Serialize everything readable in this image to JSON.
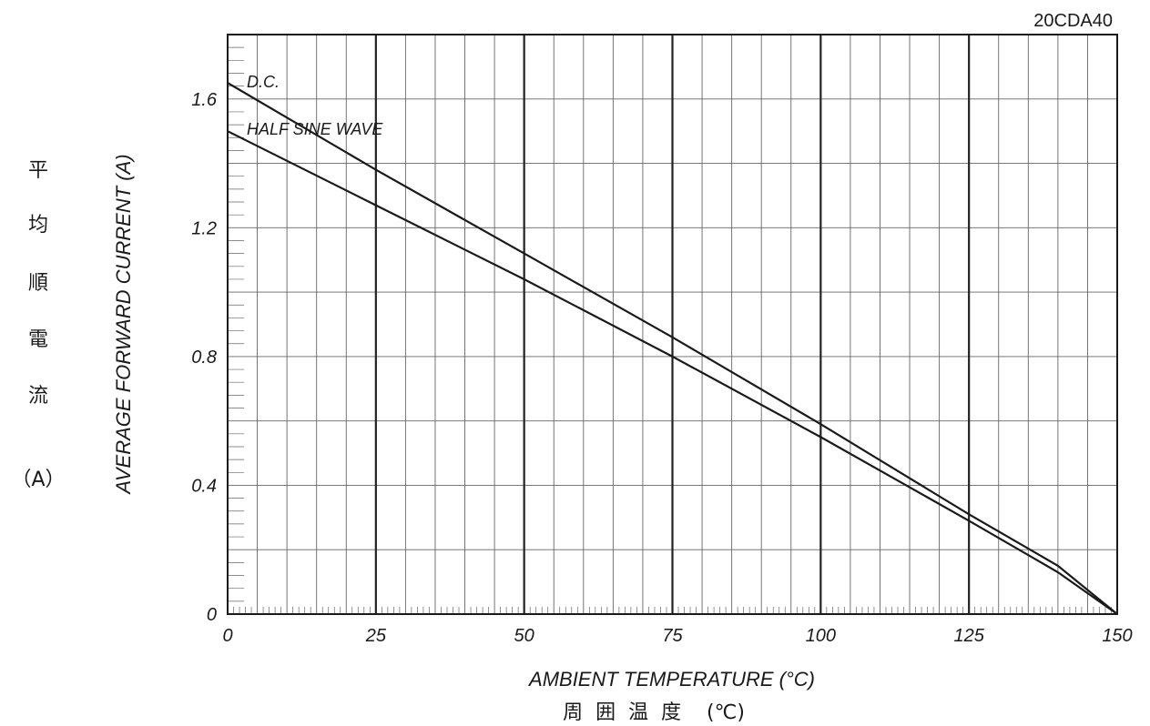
{
  "chart_data": {
    "type": "line",
    "model_label": "20CDA40",
    "xlabel": "AMBIENT TEMPERATURE (°C)",
    "xlabel_jp": "周  囲  温  度    (℃)",
    "ylabel": "AVERAGE FORWARD CURRENT (A)",
    "ylabel_jp": [
      "平",
      "均",
      "順",
      "電",
      "流",
      "（A）"
    ],
    "xlim": [
      0,
      150
    ],
    "ylim": [
      0,
      1.8
    ],
    "x_ticks": [
      "0",
      "25",
      "50",
      "75",
      "100",
      "125",
      "150"
    ],
    "y_ticks": [
      "0",
      "0.4",
      "0.8",
      "1.2",
      "1.6"
    ],
    "grid": true,
    "series": [
      {
        "name": "D.C.",
        "x": [
          0,
          25,
          50,
          75,
          100,
          125,
          140,
          150
        ],
        "y": [
          1.65,
          1.38,
          1.12,
          0.86,
          0.59,
          0.31,
          0.15,
          0.0
        ]
      },
      {
        "name": "HALF SINE WAVE",
        "x": [
          0,
          25,
          50,
          75,
          100,
          125,
          140,
          150
        ],
        "y": [
          1.5,
          1.27,
          1.04,
          0.8,
          0.55,
          0.29,
          0.13,
          0.0
        ]
      }
    ]
  },
  "style": {
    "line_color": "#1a1a1a",
    "grid_color": "#666666",
    "major_grid_color": "#222222"
  }
}
